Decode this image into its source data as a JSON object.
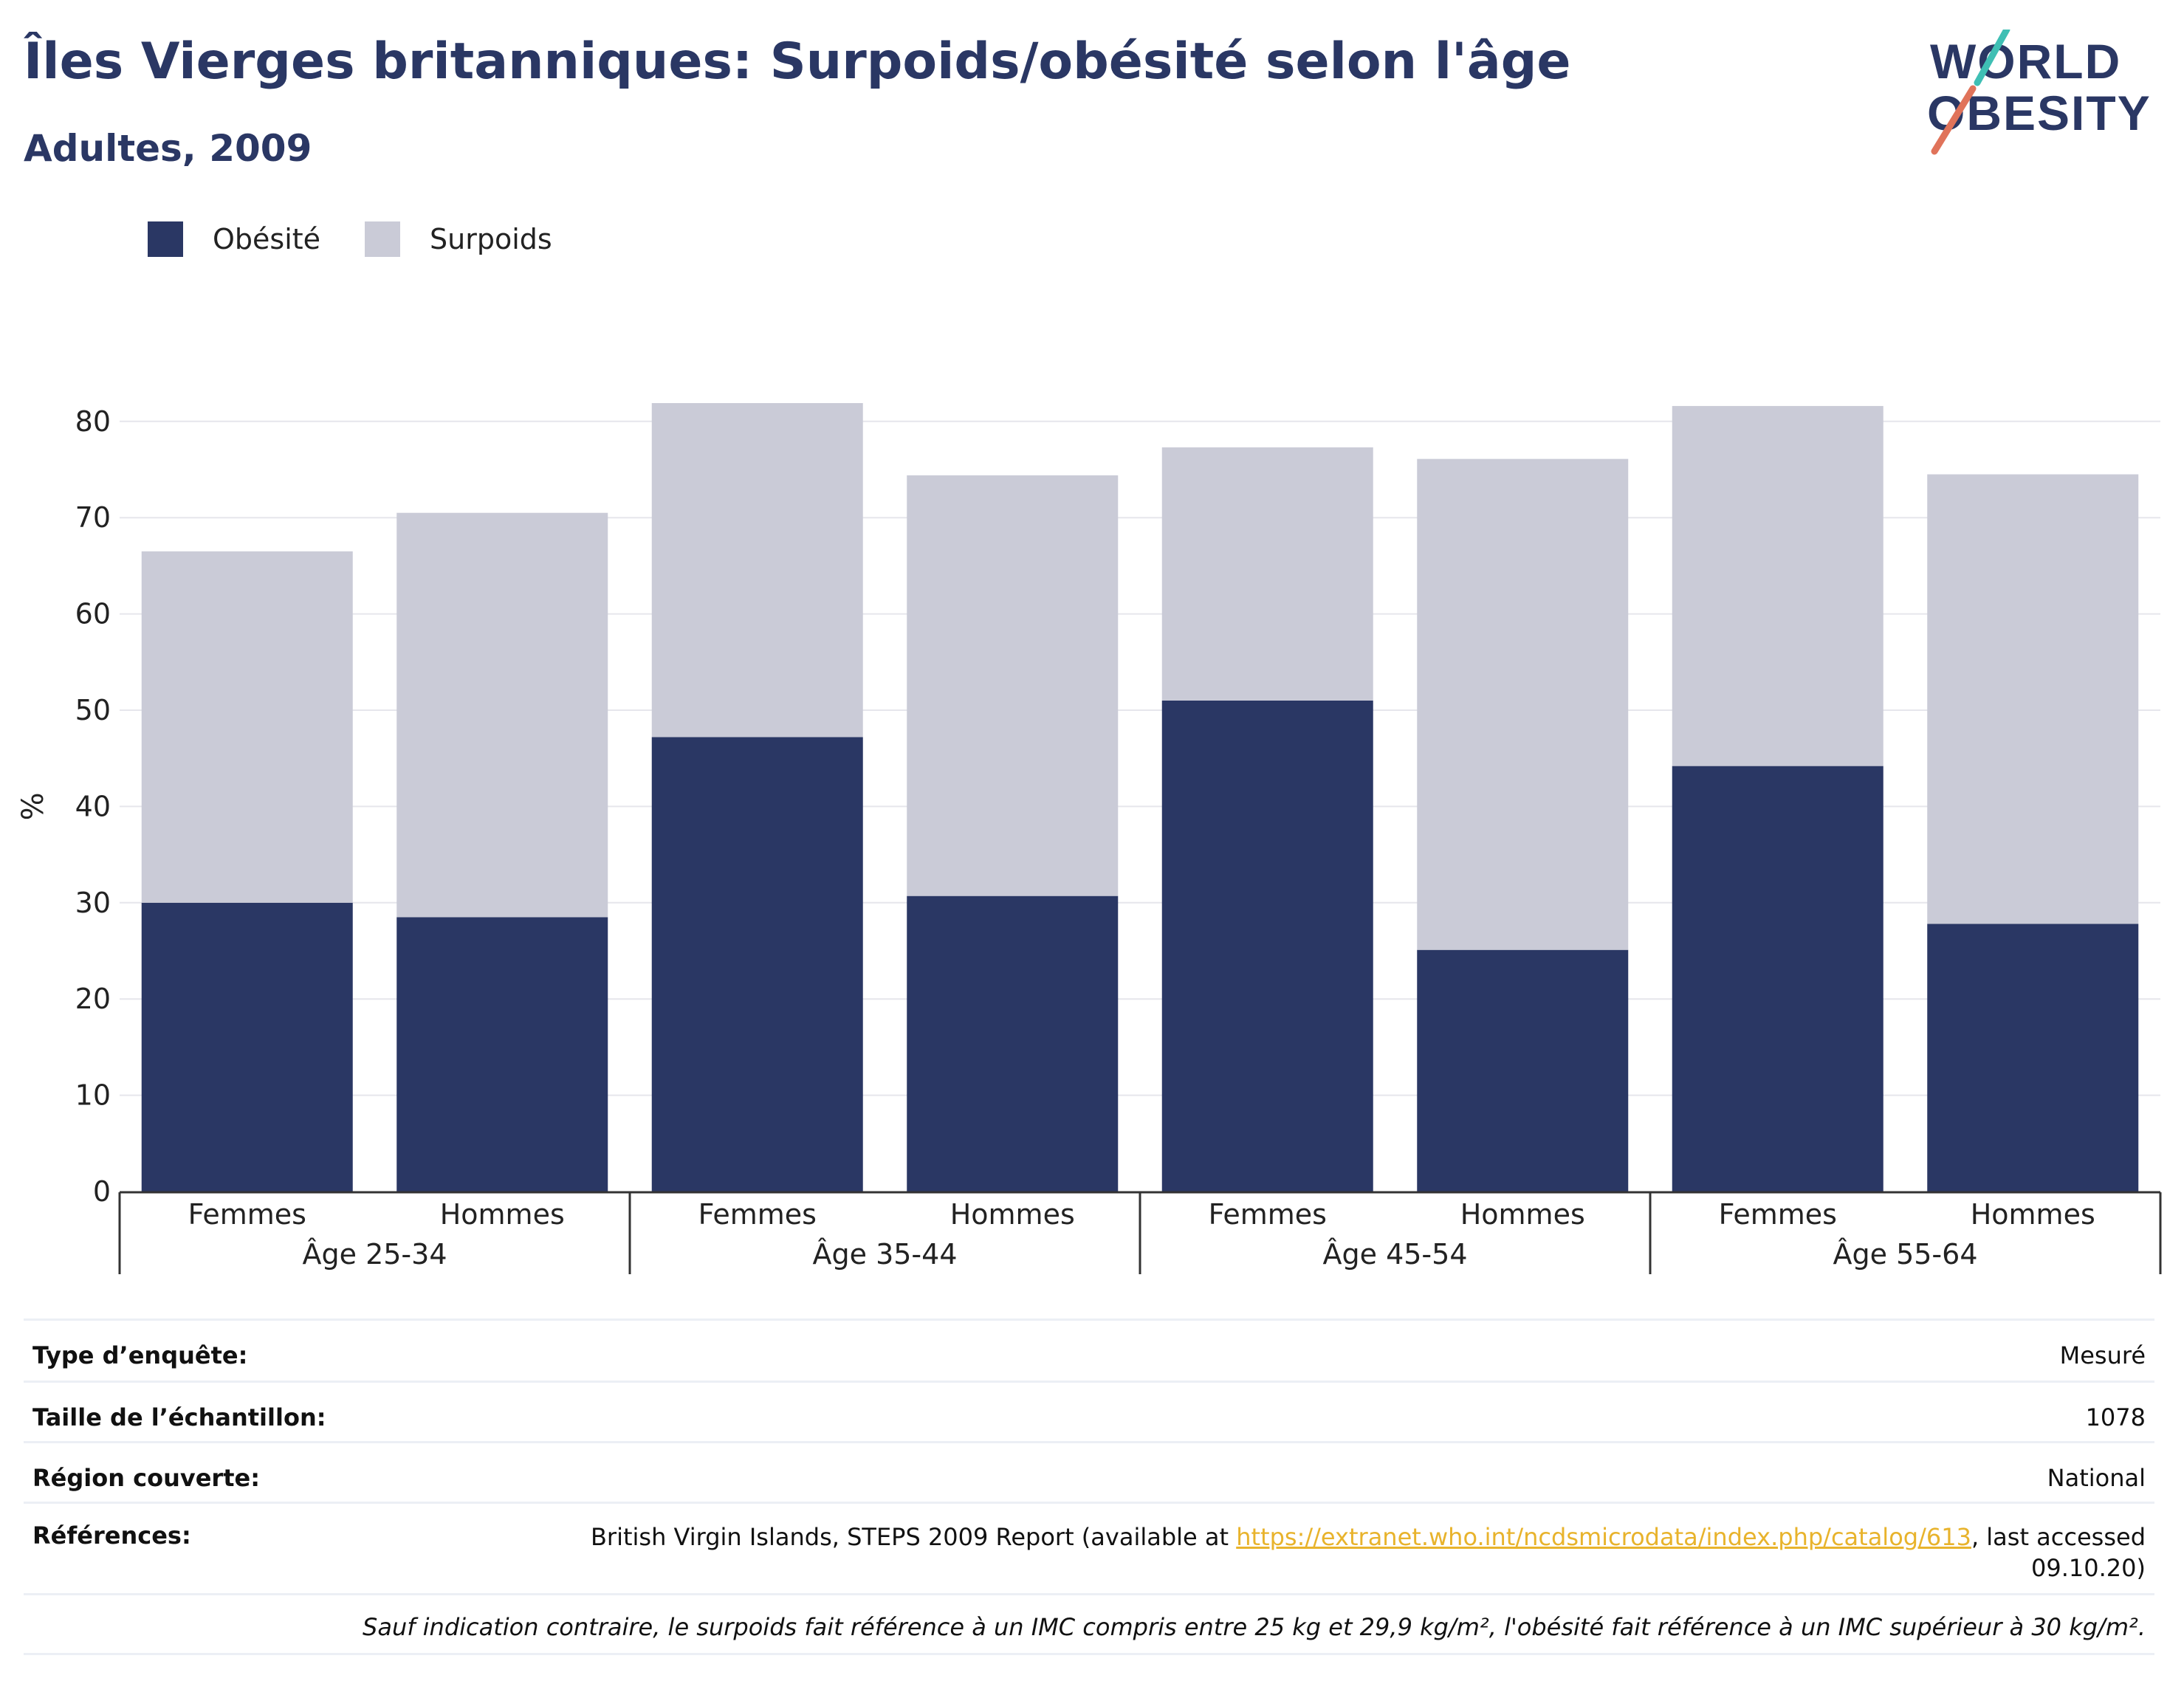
{
  "header": {
    "title": "Îles Vierges britanniques: Surpoids/obésité selon l'âge",
    "subtitle": "Adultes, 2009"
  },
  "logo": {
    "line1": "WORLD",
    "line2": "OBESITY"
  },
  "colors": {
    "obesity": "#2a3764",
    "overweight": "#cacbd7",
    "grid": "#e6e6ec",
    "axis": "#333333",
    "link": "#e8b32c"
  },
  "legend": {
    "items": [
      {
        "label": "Obésité"
      },
      {
        "label": "Surpoids"
      }
    ]
  },
  "chart_data": {
    "type": "bar",
    "stacked": true,
    "ylabel": "%",
    "ylim": [
      0,
      85
    ],
    "yticks": [
      0,
      10,
      20,
      30,
      40,
      50,
      60,
      70,
      80
    ],
    "groups": [
      "Âge 25-34",
      "Âge 35-44",
      "Âge 45-54",
      "Âge 55-64"
    ],
    "categories": [
      "Femmes",
      "Hommes",
      "Femmes",
      "Hommes",
      "Femmes",
      "Hommes",
      "Femmes",
      "Hommes"
    ],
    "series": [
      {
        "name": "Obésité",
        "values": [
          30.0,
          28.5,
          47.2,
          30.7,
          51.0,
          25.1,
          44.2,
          27.8
        ]
      },
      {
        "name": "Surpoids",
        "values": [
          36.5,
          42.0,
          34.7,
          43.7,
          26.3,
          51.0,
          37.4,
          46.7
        ]
      }
    ],
    "grid": true,
    "legend_position": "top-left"
  },
  "info": {
    "survey_type": {
      "label": "Type d’enquête:",
      "value": "Mesuré"
    },
    "sample_size": {
      "label": "Taille de l’échantillon:",
      "value": "1078"
    },
    "region": {
      "label": "Région couverte:",
      "value": "National"
    },
    "references": {
      "label": "Références:",
      "prefix": "British Virgin Islands, STEPS 2009 Report (available at ",
      "link": "https://extranet.who.int/ncdsmicrodata/index.php/catalog/613",
      "suffix": ", last accessed 09.10.20)"
    },
    "note": "Sauf indication contraire, le surpoids fait référence à un IMC compris entre 25 kg et 29,9 kg/m², l'obésité fait référence à un IMC supérieur à 30 kg/m²."
  }
}
